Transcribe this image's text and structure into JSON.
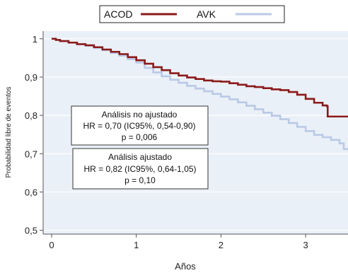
{
  "chart_data": {
    "type": "line",
    "title": "",
    "xlabel": "Años",
    "ylabel": "Probabilidad libre de eventos",
    "xlim": [
      -0.1,
      3.5
    ],
    "ylim": [
      0.49,
      1.02
    ],
    "xticks": [
      0,
      1,
      2,
      3
    ],
    "xtick_labels": [
      "0",
      "1",
      "2",
      "3"
    ],
    "yticks": [
      0.5,
      0.6,
      0.7,
      0.8,
      0.9,
      1.0
    ],
    "ytick_labels": [
      "0,5",
      "0,6",
      "0,7",
      "0,8",
      "0,9",
      "1"
    ],
    "grid": "horizontal",
    "legend_position": "top",
    "series": [
      {
        "name": "ACOD",
        "color": "#8b1a1a",
        "step": true,
        "points": [
          [
            0.0,
            1.0
          ],
          [
            0.05,
            0.997
          ],
          [
            0.1,
            0.994
          ],
          [
            0.2,
            0.99
          ],
          [
            0.3,
            0.986
          ],
          [
            0.4,
            0.983
          ],
          [
            0.5,
            0.978
          ],
          [
            0.6,
            0.972
          ],
          [
            0.7,
            0.966
          ],
          [
            0.8,
            0.96
          ],
          [
            0.9,
            0.952
          ],
          [
            1.0,
            0.944
          ],
          [
            1.1,
            0.935
          ],
          [
            1.2,
            0.926
          ],
          [
            1.3,
            0.918
          ],
          [
            1.4,
            0.91
          ],
          [
            1.5,
            0.904
          ],
          [
            1.6,
            0.899
          ],
          [
            1.7,
            0.895
          ],
          [
            1.8,
            0.891
          ],
          [
            1.9,
            0.889
          ],
          [
            2.0,
            0.888
          ],
          [
            2.1,
            0.884
          ],
          [
            2.2,
            0.88
          ],
          [
            2.3,
            0.876
          ],
          [
            2.4,
            0.874
          ],
          [
            2.5,
            0.871
          ],
          [
            2.6,
            0.868
          ],
          [
            2.7,
            0.866
          ],
          [
            2.8,
            0.861
          ],
          [
            2.9,
            0.854
          ],
          [
            3.0,
            0.843
          ],
          [
            3.1,
            0.833
          ],
          [
            3.2,
            0.826
          ],
          [
            3.25,
            0.824
          ],
          [
            3.26,
            0.797
          ],
          [
            3.5,
            0.797
          ]
        ]
      },
      {
        "name": "AVK",
        "color": "#b9c9e6",
        "step": true,
        "points": [
          [
            0.0,
            1.0
          ],
          [
            0.05,
            0.997
          ],
          [
            0.1,
            0.994
          ],
          [
            0.2,
            0.99
          ],
          [
            0.3,
            0.986
          ],
          [
            0.4,
            0.982
          ],
          [
            0.5,
            0.976
          ],
          [
            0.6,
            0.97
          ],
          [
            0.7,
            0.963
          ],
          [
            0.8,
            0.956
          ],
          [
            0.9,
            0.947
          ],
          [
            1.0,
            0.938
          ],
          [
            1.1,
            0.924
          ],
          [
            1.2,
            0.912
          ],
          [
            1.3,
            0.902
          ],
          [
            1.4,
            0.893
          ],
          [
            1.5,
            0.885
          ],
          [
            1.6,
            0.877
          ],
          [
            1.7,
            0.87
          ],
          [
            1.8,
            0.863
          ],
          [
            1.9,
            0.856
          ],
          [
            2.0,
            0.849
          ],
          [
            2.1,
            0.842
          ],
          [
            2.2,
            0.834
          ],
          [
            2.3,
            0.825
          ],
          [
            2.4,
            0.816
          ],
          [
            2.5,
            0.807
          ],
          [
            2.6,
            0.799
          ],
          [
            2.7,
            0.79
          ],
          [
            2.8,
            0.78
          ],
          [
            2.9,
            0.77
          ],
          [
            3.0,
            0.759
          ],
          [
            3.1,
            0.749
          ],
          [
            3.2,
            0.743
          ],
          [
            3.3,
            0.736
          ],
          [
            3.4,
            0.727
          ],
          [
            3.45,
            0.712
          ],
          [
            3.5,
            0.712
          ]
        ]
      }
    ],
    "annotations": [
      {
        "id": "unadjusted",
        "lines": [
          "Análisis no ajustado",
          "HR = 0,70 (IC95%, 0,54-0,90)",
          "p = 0,006"
        ]
      },
      {
        "id": "adjusted",
        "lines": [
          "Análisis ajustado",
          "HR = 0,82 (IC95%, 0,64-1,05)",
          "p = 0,10"
        ]
      }
    ]
  }
}
